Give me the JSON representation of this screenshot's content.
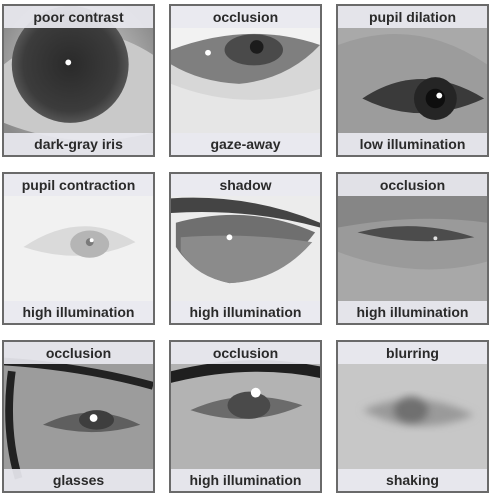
{
  "tiles": [
    {
      "top_label": "poor contrast",
      "bottom_label": "dark-gray iris"
    },
    {
      "top_label": "occlusion",
      "bottom_label": "gaze-away"
    },
    {
      "top_label": "pupil dilation",
      "bottom_label": "low illumination"
    },
    {
      "top_label": "pupil contraction",
      "bottom_label": "high illumination"
    },
    {
      "top_label": "shadow",
      "bottom_label": "high illumination"
    },
    {
      "top_label": "occlusion",
      "bottom_label": "high illumination"
    },
    {
      "top_label": "occlusion",
      "bottom_label": "glasses"
    },
    {
      "top_label": "occlusion",
      "bottom_label": "high illumination"
    },
    {
      "top_label": "blurring",
      "bottom_label": "shaking"
    }
  ]
}
